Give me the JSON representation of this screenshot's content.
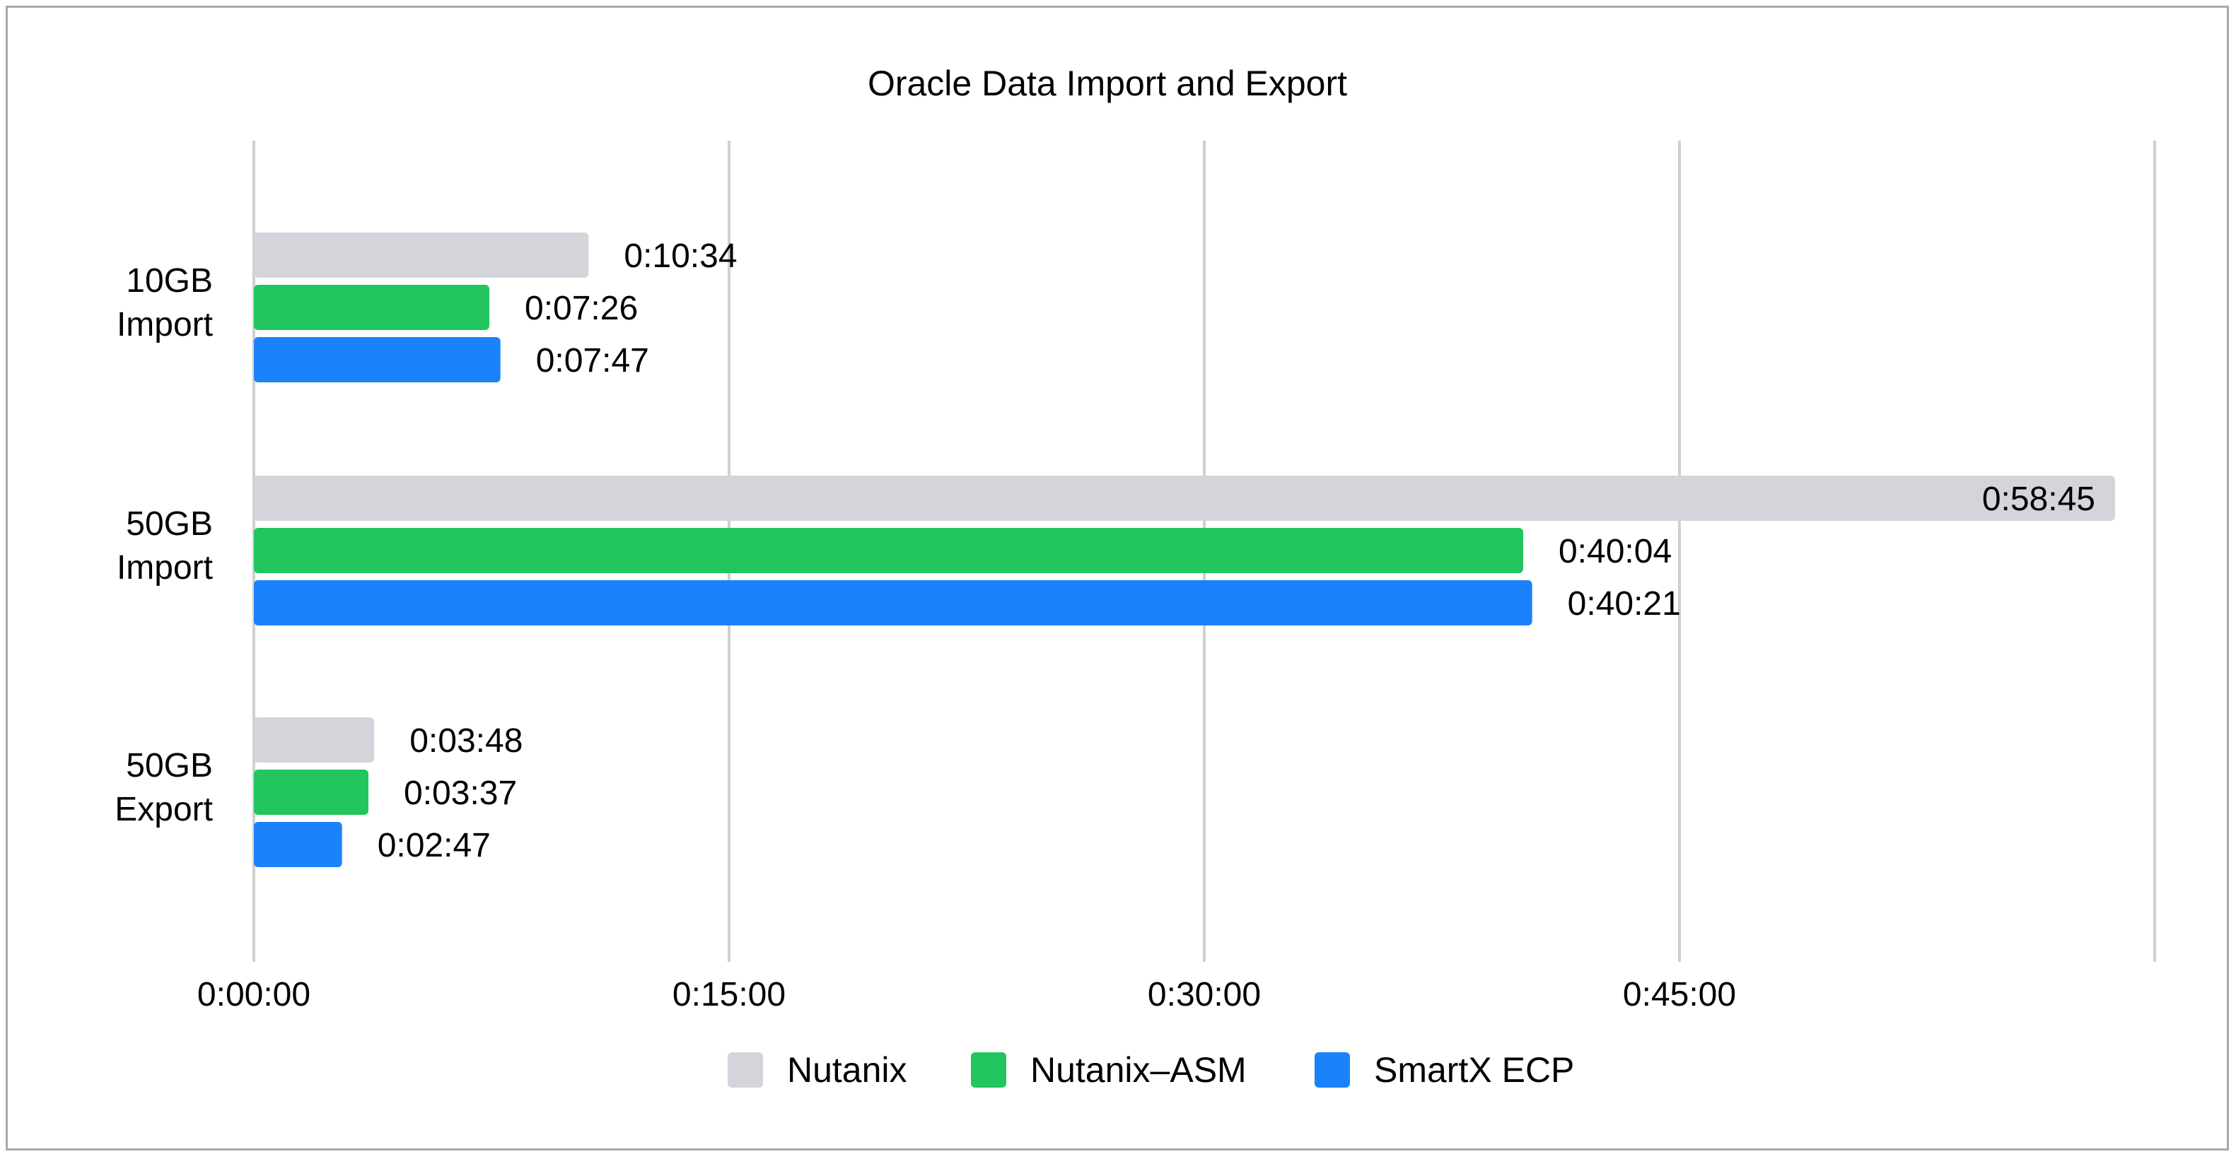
{
  "chart_data": {
    "type": "bar",
    "orientation": "horizontal",
    "title": "Oracle Data Import and Export",
    "categories": [
      [
        "10GB",
        "Import"
      ],
      [
        "50GB",
        "Import"
      ],
      [
        "50GB",
        "Export"
      ]
    ],
    "unit": "seconds",
    "xlim": [
      0,
      3600
    ],
    "xticks": [
      {
        "value": 0,
        "label": "0:00:00"
      },
      {
        "value": 900,
        "label": "0:15:00"
      },
      {
        "value": 1800,
        "label": "0:30:00"
      },
      {
        "value": 2700,
        "label": "0:45:00"
      }
    ],
    "grid": true,
    "legend_position": "bottom",
    "series": [
      {
        "name": "Nutanix",
        "color": "#d3d5da",
        "values": [
          634,
          3525,
          228
        ],
        "labels": [
          "0:10:34",
          "0:58:45",
          "0:03:48"
        ]
      },
      {
        "name": "Nutanix–ASM",
        "color": "#22c55e",
        "values": [
          446,
          2404,
          217
        ],
        "labels": [
          "0:07:26",
          "0:40:04",
          "0:03:37"
        ]
      },
      {
        "name": "SmartX ECP",
        "color": "#1a82fb",
        "values": [
          467,
          2421,
          167
        ],
        "labels": [
          "0:07:47",
          "0:40:21",
          "0:02:47"
        ]
      }
    ]
  }
}
